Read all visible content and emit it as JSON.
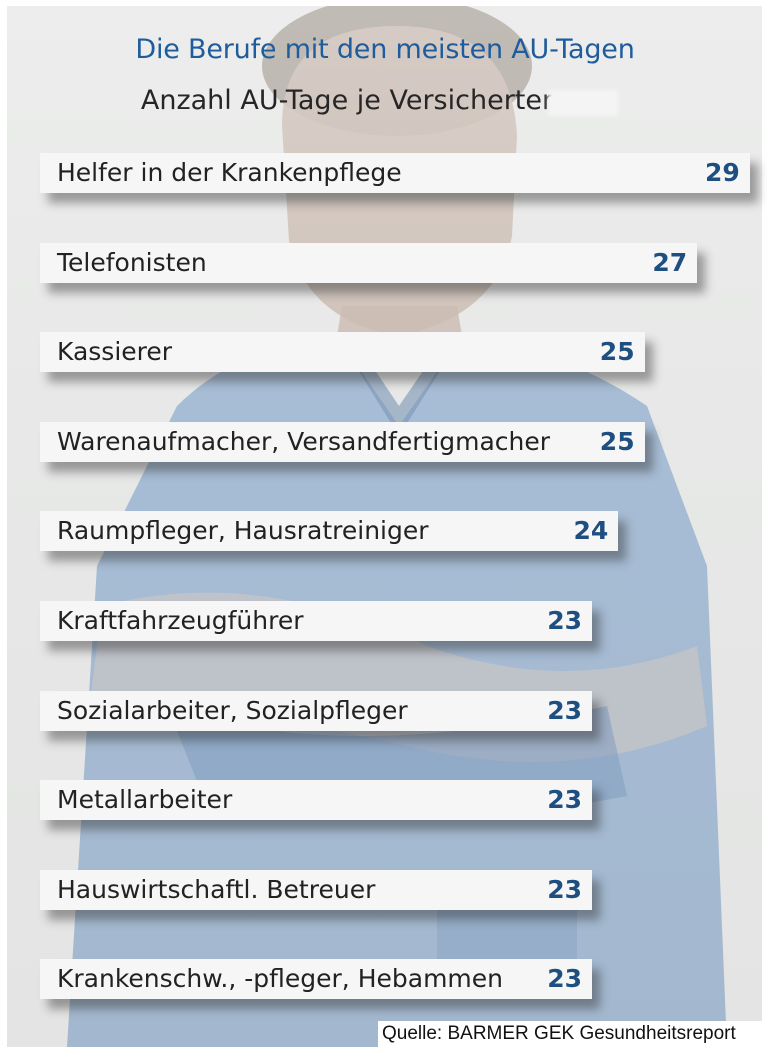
{
  "chart_data": {
    "type": "bar",
    "orientation": "horizontal",
    "title": "Die Berufe mit den meisten AU-Tagen",
    "subtitle": "Anzahl AU-Tage je Versicherten",
    "categories": [
      "Helfer in der Krankenpflege",
      "Telefonisten",
      "Kassierer",
      "Warenaufmacher, Versandfertigmacher",
      "Raumpfleger, Hausratreiniger",
      "Kraftfahrzeugführer",
      "Sozialarbeiter, Sozialpfleger",
      "Metallarbeiter",
      "Hauswirtschaftl. Betreuer",
      "Krankenschw., -pfleger, Hebammen"
    ],
    "values": [
      29,
      27,
      25,
      25,
      24,
      23,
      23,
      23,
      23,
      23
    ],
    "source": "Quelle: BARMER GEK Gesundheitsreport",
    "colors": {
      "title": "#1f5c9c",
      "value": "#1f4f80",
      "bar": "#f6f6f6",
      "scrub_color": "#6f93bf"
    }
  }
}
